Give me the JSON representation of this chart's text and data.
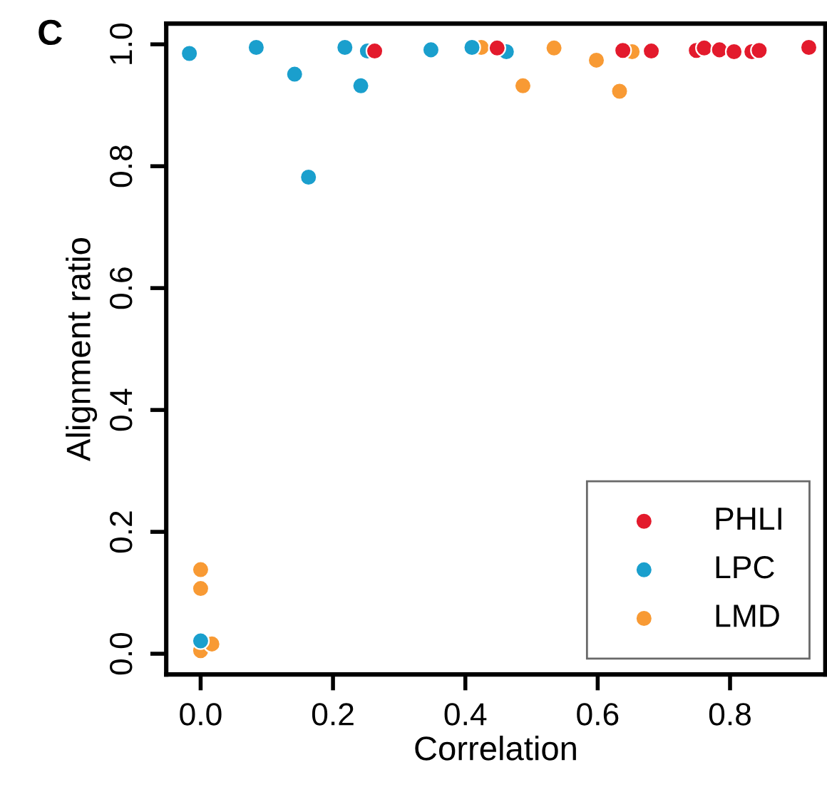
{
  "chart_data": {
    "type": "scatter",
    "xlabel": "Correlation",
    "ylabel": "Alignment ratio",
    "annotations": [
      "C"
    ],
    "xlim": [
      -0.052,
      0.944
    ],
    "ylim": [
      -0.034,
      1.034
    ],
    "xticks": [
      {
        "value": 0,
        "label": "0.0"
      },
      0.2,
      0.4,
      0.6,
      0.8
    ],
    "yticks": [
      {
        "value": 0,
        "label": "0.0"
      },
      0.2,
      0.4,
      0.6,
      0.8,
      {
        "value": 1,
        "label": "1.0"
      }
    ],
    "grid": false,
    "legend": "bottom right",
    "marker": "circle",
    "series": [
      {
        "name": "PHLI",
        "color": "#e31a2c",
        "x": [
          0.263,
          0.448,
          0.638,
          0.681,
          0.749,
          0.761,
          0.784,
          0.806,
          0.833,
          0.844,
          0.919
        ],
        "values": [
          0.989,
          0.994,
          0.99,
          0.989,
          0.99,
          0.994,
          0.991,
          0.988,
          0.988,
          0.99,
          0.995
        ]
      },
      {
        "name": "LPC",
        "color": "#1a9fcd",
        "x": [
          -0.017,
          0.084,
          0.142,
          0.163,
          0.218,
          0.242,
          0.252,
          0.348,
          0.41,
          0.462,
          0.0
        ],
        "values": [
          0.985,
          0.995,
          0.951,
          0.782,
          0.995,
          0.932,
          0.989,
          0.991,
          0.995,
          0.988,
          0.021
        ]
      },
      {
        "name": "LMD",
        "color": "#f89a34",
        "x": [
          0.424,
          0.487,
          0.534,
          0.598,
          0.652,
          0.633,
          0.0,
          0.0,
          0.0,
          0.017
        ],
        "values": [
          0.995,
          0.932,
          0.994,
          0.974,
          0.988,
          0.923,
          0.138,
          0.107,
          0.005,
          0.016
        ]
      }
    ]
  }
}
